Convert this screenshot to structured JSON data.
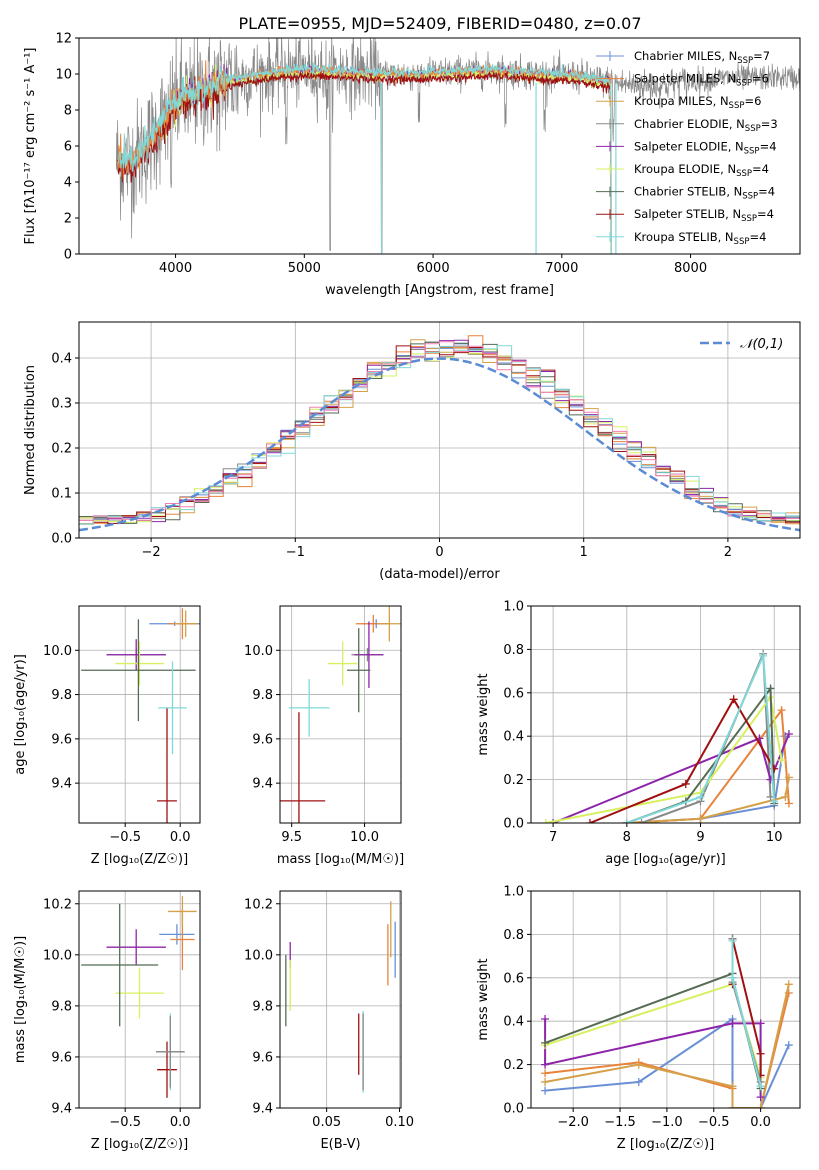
{
  "figure": {
    "title": "PLATE=0955, MJD=52409, FIBERID=0480, z=0.07",
    "colors": {
      "chabrier_miles": "#6a8fd6",
      "salpeter_miles": "#e8833a",
      "kroupa_miles": "#d4a04a",
      "chabrier_elodie": "#888888",
      "salpeter_elodie": "#8e24aa",
      "kroupa_elodie": "#d6f060",
      "chabrier_stelib": "#556b55",
      "salpeter_stelib": "#a01010",
      "kroupa_stelib": "#80d8d8",
      "normal_curve": "#5b8bd4",
      "pink": "#f080b0",
      "green": "#5a8a60"
    }
  },
  "chart_data": [
    {
      "id": "spectrum",
      "type": "line",
      "title": "PLATE=0955, MJD=52409, FIBERID=0480, z=0.07",
      "xlabel": "wavelength [Angstrom, rest frame]",
      "ylabel": "Flux [fλ10⁻¹⁷ erg cm⁻² s⁻¹ A⁻¹]",
      "xlim": [
        3250,
        8850
      ],
      "ylim": [
        0,
        12
      ],
      "xticks": [
        "4000",
        "5000",
        "6000",
        "7000",
        "8000"
      ],
      "yticks": [
        "0",
        "2",
        "4",
        "6",
        "8",
        "10",
        "12"
      ],
      "legend_position": "top-right",
      "legend": [
        "Chabrier MILES, N_SSP=7",
        "Salpeter MILES, N_SSP=6",
        "Kroupa MILES, N_SSP=6",
        "Chabrier ELODIE, N_SSP=3",
        "Salpeter ELODIE, N_SSP=4",
        "Kroupa ELODIE, N_SSP=4",
        "Chabrier STELIB, N_SSP=4",
        "Salpeter STELIB, N_SSP=4",
        "Kroupa STELIB, N_SSP=4"
      ],
      "continuum": {
        "x": [
          3550,
          3650,
          3800,
          3950,
          4050,
          4200,
          4400,
          4600,
          4800,
          5000,
          5300,
          5600,
          5900,
          6200,
          6500,
          6800,
          7100,
          7400,
          7700,
          8000,
          8300,
          8800
        ],
        "y": [
          5.2,
          5.0,
          6.2,
          8.0,
          8.7,
          9.0,
          9.6,
          9.9,
          10.1,
          10.2,
          10.1,
          10.0,
          10.0,
          10.1,
          10.2,
          10.0,
          9.9,
          9.5,
          9.3,
          9.6,
          9.8,
          9.8
        ]
      },
      "grid": false
    },
    {
      "id": "residuals",
      "type": "line",
      "xlabel": "(data-model)/error",
      "ylabel": "Normed distribution",
      "xlim": [
        -2.5,
        2.5
      ],
      "ylim": [
        0,
        0.48
      ],
      "xticks": [
        "−2",
        "−1",
        "0",
        "1",
        "2"
      ],
      "yticks": [
        "0.0",
        "0.1",
        "0.2",
        "0.3",
        "0.4"
      ],
      "legend": [
        "𝒩(0,1)"
      ],
      "legend_position": "top-right",
      "grid": true,
      "bin_width": 0.1
    },
    {
      "id": "age_vs_Z",
      "type": "scatter",
      "xlabel": "Z [log₁₀(Z/Z☉)]",
      "ylabel": "age  [log₁₀(age/yr)]",
      "xlim": [
        -0.92,
        0.18
      ],
      "ylim": [
        9.22,
        10.2
      ],
      "xticks": [
        "−0.5",
        "0.0"
      ],
      "yticks": [
        "9.4",
        "9.6",
        "9.8",
        "10.0"
      ],
      "grid": true,
      "points": [
        {
          "series": "Chabrier MILES",
          "x": -0.05,
          "xerr": 0.23,
          "y": 10.12,
          "yerr": 0.01
        },
        {
          "series": "Salpeter MILES",
          "x": 0.02,
          "xerr": 0.13,
          "y": 10.12,
          "yerr": 0.07
        },
        {
          "series": "Kroupa MILES",
          "x": 0.05,
          "xerr": 0.11,
          "y": 10.12,
          "yerr": 0.06
        },
        {
          "series": "Chabrier ELODIE",
          "x": -0.4,
          "xerr": 0.27,
          "y": 9.98,
          "yerr": 0.03
        },
        {
          "series": "Salpeter ELODIE",
          "x": -0.4,
          "xerr": 0.27,
          "y": 9.98,
          "yerr": 0.07
        },
        {
          "series": "Kroupa ELODIE",
          "x": -0.37,
          "xerr": 0.22,
          "y": 9.94,
          "yerr": 0.1
        },
        {
          "series": "Chabrier STELIB",
          "x": -0.38,
          "xerr": 0.52,
          "y": 9.91,
          "yerr": 0.23
        },
        {
          "series": "Salpeter STELIB",
          "x": -0.12,
          "xerr": 0.09,
          "y": 9.32,
          "yerr": 0.42
        },
        {
          "series": "Kroupa STELIB",
          "x": -0.07,
          "xerr": 0.13,
          "y": 9.74,
          "yerr": 0.21
        }
      ]
    },
    {
      "id": "age_vs_mass",
      "type": "scatter",
      "xlabel": "mass [log₁₀(M/M☉)]",
      "xlim": [
        9.42,
        10.25
      ],
      "ylim": [
        9.22,
        10.2
      ],
      "xticks": [
        "9.5",
        "10.0"
      ],
      "yticks": [
        "9.4",
        "9.6",
        "9.8",
        "10.0"
      ],
      "grid": true,
      "points": [
        {
          "series": "Chabrier MILES",
          "x": 10.08,
          "xerr": 0.1,
          "y": 10.12,
          "yerr": 0.02
        },
        {
          "series": "Salpeter MILES",
          "x": 10.06,
          "xerr": 0.12,
          "y": 10.12,
          "yerr": 0.04
        },
        {
          "series": "Kroupa MILES",
          "x": 10.17,
          "xerr": 0.08,
          "y": 10.12,
          "yerr": 0.08
        },
        {
          "series": "Chabrier ELODIE",
          "x": 10.02,
          "xerr": 0.11,
          "y": 9.98,
          "yerr": 0.03
        },
        {
          "series": "Salpeter ELODIE",
          "x": 10.03,
          "xerr": 0.1,
          "y": 9.98,
          "yerr": 0.15
        },
        {
          "series": "Kroupa ELODIE",
          "x": 9.85,
          "xerr": 0.1,
          "y": 9.94,
          "yerr": 0.1
        },
        {
          "series": "Chabrier STELIB",
          "x": 9.96,
          "xerr": 0.08,
          "y": 9.91,
          "yerr": 0.19
        },
        {
          "series": "Salpeter STELIB",
          "x": 9.55,
          "xerr": 0.18,
          "y": 9.32,
          "yerr": 0.4
        },
        {
          "series": "Kroupa STELIB",
          "x": 9.62,
          "xerr": 0.14,
          "y": 9.74,
          "yerr": 0.13
        }
      ]
    },
    {
      "id": "weights_vs_age",
      "type": "line",
      "xlabel": "age  [log₁₀(age/yr)]",
      "ylabel": "mass weight",
      "xlim": [
        6.7,
        10.35
      ],
      "ylim": [
        0,
        1
      ],
      "xticks": [
        "7",
        "8",
        "9",
        "10"
      ],
      "yticks": [
        "0.0",
        "0.2",
        "0.4",
        "0.6",
        "0.8",
        "1.0"
      ],
      "grid": true,
      "series": [
        {
          "name": "Chabrier MILES",
          "x": [
            8.0,
            9.0,
            10.0,
            10.15
          ],
          "y": [
            0.0,
            0.02,
            0.08,
            0.4
          ]
        },
        {
          "name": "Salpeter MILES",
          "x": [
            8.0,
            9.0,
            10.1,
            10.2
          ],
          "y": [
            0.0,
            0.02,
            0.52,
            0.09
          ]
        },
        {
          "name": "Kroupa MILES",
          "x": [
            8.0,
            9.0,
            10.15,
            10.2
          ],
          "y": [
            0.0,
            0.02,
            0.12,
            0.21
          ]
        },
        {
          "name": "Chabrier ELODIE",
          "x": [
            8.2,
            9.0,
            9.85,
            9.95
          ],
          "y": [
            0.0,
            0.1,
            0.78,
            0.12
          ]
        },
        {
          "name": "Salpeter ELODIE",
          "x": [
            7.0,
            9.8,
            9.95,
            10.2
          ],
          "y": [
            0.0,
            0.39,
            0.2,
            0.41
          ]
        },
        {
          "name": "Kroupa ELODIE",
          "x": [
            6.9,
            9.0,
            9.95,
            10.1
          ],
          "y": [
            0.0,
            0.14,
            0.58,
            0.29
          ]
        },
        {
          "name": "Chabrier STELIB",
          "x": [
            8.0,
            8.8,
            9.95,
            10.0
          ],
          "y": [
            0.0,
            0.1,
            0.62,
            0.09
          ]
        },
        {
          "name": "Salpeter STELIB",
          "x": [
            7.5,
            8.8,
            9.45,
            10.0
          ],
          "y": [
            0.0,
            0.18,
            0.57,
            0.25
          ]
        },
        {
          "name": "Kroupa STELIB",
          "x": [
            8.0,
            9.0,
            9.85,
            10.0
          ],
          "y": [
            0.0,
            0.12,
            0.77,
            0.1
          ]
        }
      ]
    },
    {
      "id": "mass_vs_Z",
      "type": "scatter",
      "xlabel": "Z [log₁₀(Z/Z☉)]",
      "ylabel": "mass [log₁₀(M/M☉)]",
      "xlim": [
        -0.92,
        0.18
      ],
      "ylim": [
        9.4,
        10.25
      ],
      "xticks": [
        "−0.5",
        "0.0"
      ],
      "yticks": [
        "9.4",
        "9.6",
        "9.8",
        "10.0",
        "10.2"
      ],
      "grid": true,
      "points": [
        {
          "series": "Chabrier MILES",
          "x": -0.03,
          "xerr": 0.16,
          "y": 10.08,
          "yerr": 0.04
        },
        {
          "series": "Salpeter MILES",
          "x": 0.02,
          "xerr": 0.11,
          "y": 10.06,
          "yerr": 0.12
        },
        {
          "series": "Kroupa MILES",
          "x": 0.02,
          "xerr": 0.13,
          "y": 10.17,
          "yerr": 0.06
        },
        {
          "series": "Salpeter ELODIE",
          "x": -0.4,
          "xerr": 0.27,
          "y": 10.03,
          "yerr": 0.07
        },
        {
          "series": "Kroupa ELODIE",
          "x": -0.37,
          "xerr": 0.22,
          "y": 9.85,
          "yerr": 0.1
        },
        {
          "series": "Chabrier STELIB",
          "x": -0.55,
          "xerr": 0.35,
          "y": 9.96,
          "yerr": 0.24
        },
        {
          "series": "Salpeter STELIB",
          "x": -0.12,
          "xerr": 0.09,
          "y": 9.55,
          "yerr": 0.11
        },
        {
          "series": "Kroupa STELIB",
          "x": -0.09,
          "xerr": 0.13,
          "y": 9.62,
          "yerr": 0.15
        },
        {
          "series": "Chabrier ELODIE",
          "x": -0.09,
          "xerr": 0.13,
          "y": 9.62,
          "yerr": 0.14
        }
      ]
    },
    {
      "id": "mass_vs_ebv",
      "type": "scatter",
      "xlabel": "E(B-V)",
      "xlim": [
        0.018,
        0.101
      ],
      "ylim": [
        9.4,
        10.25
      ],
      "xticks": [
        "0.05",
        "0.10"
      ],
      "yticks": [
        "9.4",
        "9.6",
        "9.8",
        "10.0",
        "10.2"
      ],
      "grid": true,
      "points": [
        {
          "series": "Chabrier STELIB",
          "x": 0.022,
          "y": 9.86,
          "yerr": 0.14
        },
        {
          "series": "Salpeter ELODIE",
          "x": 0.025,
          "y": 10.0,
          "yerr": 0.05
        },
        {
          "series": "Kroupa ELODIE",
          "x": 0.025,
          "y": 9.88,
          "yerr": 0.1
        },
        {
          "series": "Salpeter STELIB",
          "x": 0.072,
          "y": 9.65,
          "yerr": 0.12
        },
        {
          "series": "Kroupa STELIB",
          "x": 0.075,
          "y": 9.62,
          "yerr": 0.16
        },
        {
          "series": "Chabrier ELODIE",
          "x": 0.075,
          "y": 9.62,
          "yerr": 0.15
        },
        {
          "series": "Salpeter MILES",
          "x": 0.092,
          "y": 10.0,
          "yerr": 0.12
        },
        {
          "series": "Kroupa MILES",
          "x": 0.094,
          "y": 10.1,
          "yerr": 0.11
        },
        {
          "series": "Chabrier MILES",
          "x": 0.097,
          "y": 10.02,
          "yerr": 0.11
        }
      ]
    },
    {
      "id": "weights_vs_Z",
      "type": "line",
      "xlabel": "Z [log₁₀(Z/Z☉)]",
      "ylabel": "mass weight",
      "xlim": [
        -2.45,
        0.42
      ],
      "ylim": [
        0,
        1
      ],
      "xticks": [
        "−2.0",
        "−1.5",
        "−1.0",
        "−0.5",
        "0.0"
      ],
      "yticks": [
        "0.0",
        "0.2",
        "0.4",
        "0.6",
        "0.8",
        "1.0"
      ],
      "grid": true,
      "series": [
        {
          "name": "Chabrier MILES",
          "x": [
            -2.3,
            -1.3,
            -0.3,
            -0.3,
            0.0,
            0.3
          ],
          "y": [
            0.08,
            0.12,
            0.41,
            0.0,
            0.0,
            0.29
          ]
        },
        {
          "name": "Salpeter MILES",
          "x": [
            -2.3,
            -1.3,
            -0.3,
            -0.3,
            0.0,
            0.3
          ],
          "y": [
            0.16,
            0.21,
            0.09,
            0.0,
            0.0,
            0.53
          ]
        },
        {
          "name": "Kroupa MILES",
          "x": [
            -2.3,
            -1.3,
            -0.3,
            -0.3,
            0.0,
            0.3
          ],
          "y": [
            0.12,
            0.2,
            0.1,
            0.0,
            0.0,
            0.57
          ]
        },
        {
          "name": "Salpeter ELODIE",
          "x": [
            -2.3,
            -2.3,
            -0.3,
            0.0,
            0.0
          ],
          "y": [
            0.41,
            0.2,
            0.39,
            0.39,
            0.05
          ]
        },
        {
          "name": "Kroupa ELODIE",
          "x": [
            -2.3,
            -0.3,
            -0.3,
            0.0
          ],
          "y": [
            0.29,
            0.57,
            0.58,
            0.14
          ]
        },
        {
          "name": "Chabrier STELIB",
          "x": [
            -2.3,
            -0.3,
            -0.3,
            0.0
          ],
          "y": [
            0.3,
            0.62,
            0.6,
            0.09
          ]
        },
        {
          "name": "Salpeter STELIB",
          "x": [
            -0.3,
            -0.3,
            0.0,
            0.0
          ],
          "y": [
            0.57,
            0.78,
            0.25,
            0.15
          ]
        },
        {
          "name": "Chabrier ELODIE",
          "x": [
            -0.3,
            -0.3,
            0.0
          ],
          "y": [
            0.78,
            0.58,
            0.12
          ]
        },
        {
          "name": "Kroupa STELIB",
          "x": [
            -0.3,
            -0.3,
            0.0
          ],
          "y": [
            0.77,
            0.6,
            0.1
          ]
        }
      ]
    }
  ]
}
